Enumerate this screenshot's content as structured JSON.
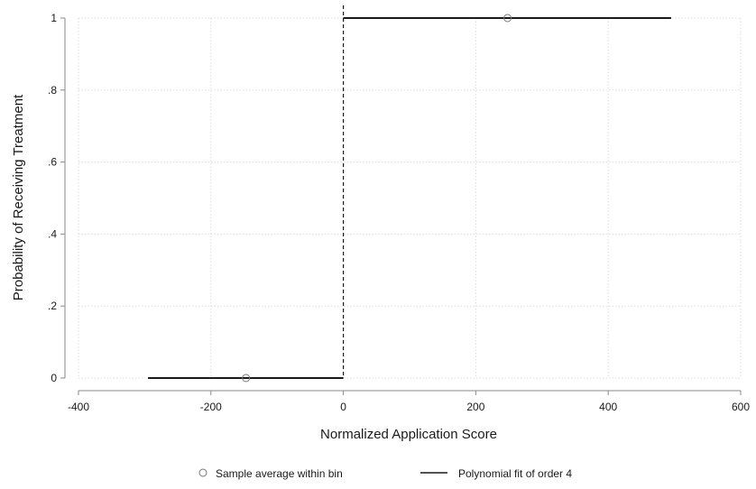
{
  "chart_data": {
    "type": "scatter",
    "title": "",
    "xlabel": "Normalized Application Score",
    "ylabel": "Probability of Receiving Treatment",
    "xlim": [
      -400,
      600
    ],
    "ylim": [
      0,
      1
    ],
    "x_ticks": [
      -400,
      -200,
      0,
      200,
      400,
      600
    ],
    "x_tick_labels": [
      "-400",
      "-200",
      "0",
      "200",
      "400",
      "600"
    ],
    "y_ticks": [
      0,
      0.2,
      0.4,
      0.6,
      0.8,
      1
    ],
    "y_tick_labels": [
      "0",
      ".2",
      ".4",
      ".6",
      ".8",
      "1"
    ],
    "grid": true,
    "cutoff": 0,
    "legend_position": "bottom",
    "series": [
      {
        "name": "Sample average within bin",
        "kind": "scatter",
        "points": [
          {
            "x": -147,
            "y": 0
          },
          {
            "x": 248,
            "y": 1
          }
        ]
      },
      {
        "name": "Polynomial fit of order 4",
        "kind": "line",
        "segments": [
          [
            {
              "x": -295,
              "y": 0
            },
            {
              "x": 0,
              "y": 0
            }
          ],
          [
            {
              "x": 0,
              "y": 1
            },
            {
              "x": 495,
              "y": 1
            }
          ]
        ]
      }
    ],
    "colors": {
      "axis": "#8a8a8a",
      "grid": "#dddddd",
      "marker": "#777777",
      "line": "#1a1a1a",
      "cutoff_line": "#1a1a1a"
    }
  }
}
